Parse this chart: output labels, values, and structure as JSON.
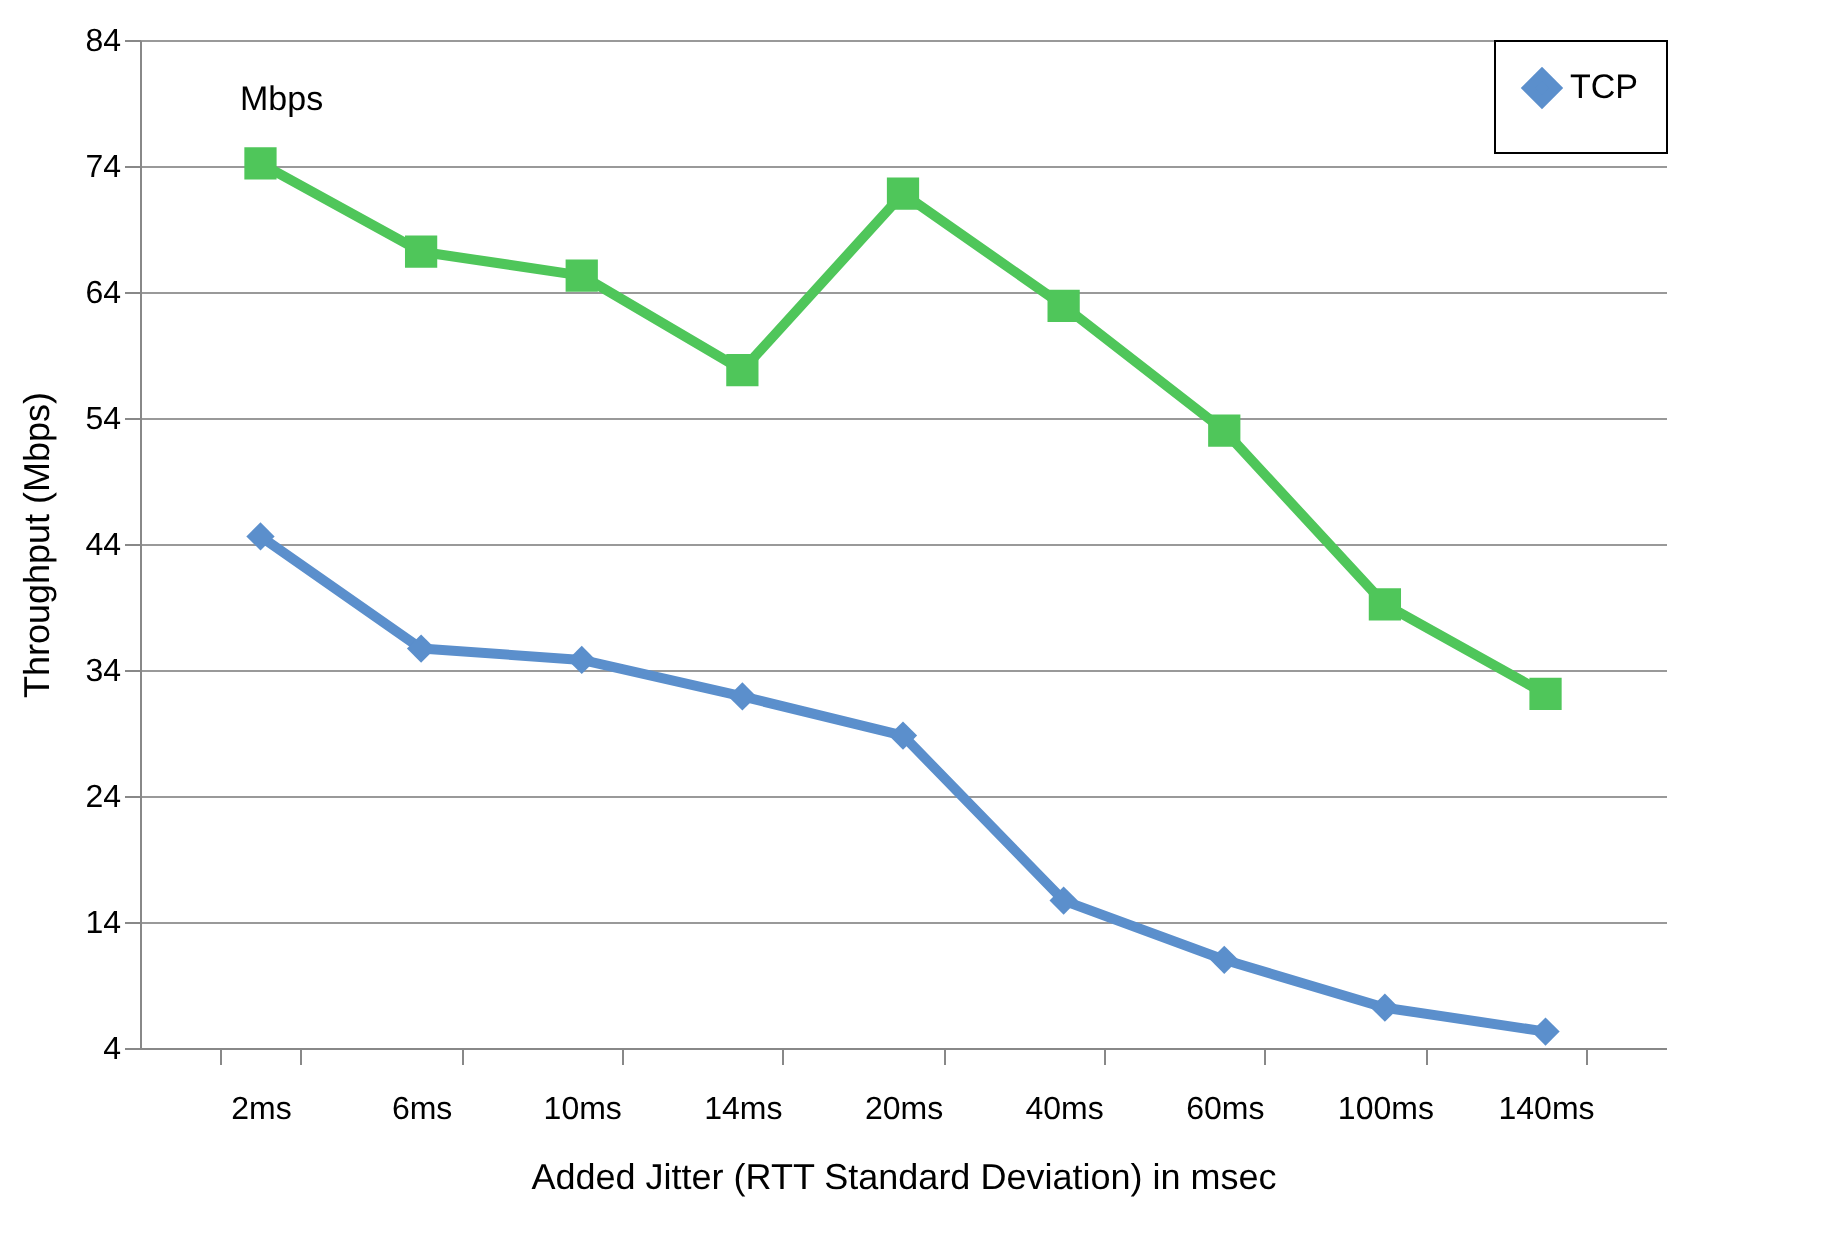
{
  "chart_data": {
    "type": "line",
    "xlabel": "Added Jitter (RTT Standard Deviation) in msec",
    "ylabel": "Throughput (Mbps)",
    "annotations": [
      "Mbps"
    ],
    "categories": [
      "2ms",
      "6ms",
      "10ms",
      "14ms",
      "20ms",
      "40ms",
      "60ms",
      "100ms",
      "140ms"
    ],
    "series": [
      {
        "color": "#4fc65a",
        "marker": "square",
        "values": [
          74.2,
          67.2,
          65.3,
          57.8,
          71.8,
          62.9,
          53,
          39.2,
          32.1
        ]
      },
      {
        "name": "TCP",
        "color": "#5b8fcc",
        "marker": "diamond",
        "values": [
          44.6,
          35.7,
          34.8,
          31.9,
          28.8,
          15.7,
          11,
          7.2,
          5.3
        ]
      }
    ],
    "ylim": [
      4,
      84
    ],
    "yticks": [
      4,
      14,
      24,
      34,
      44,
      54,
      64,
      74,
      84
    ],
    "grid": "y",
    "legend": "top right",
    "line_style": "solid"
  }
}
